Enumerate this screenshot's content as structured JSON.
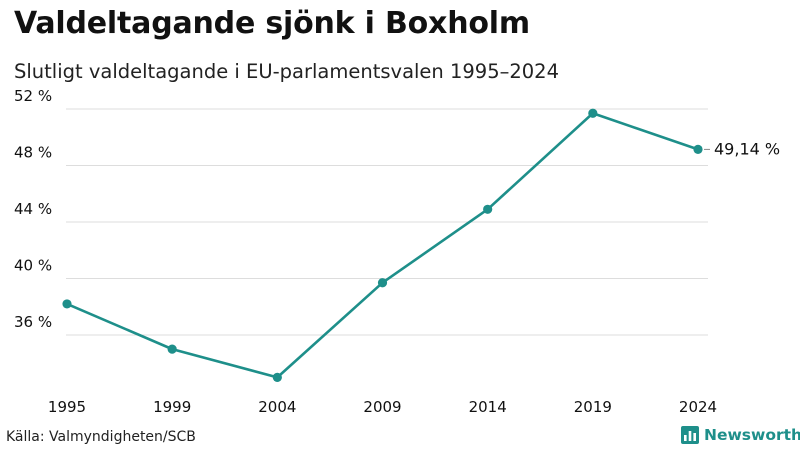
{
  "header": {
    "title": "Valdeltagande sjönk i Boxholm",
    "subtitle": "Slutligt valdeltagande i EU-parlamentsvalen 1995–2024"
  },
  "footer": {
    "source": "Källa: Valmyndigheten/SCB",
    "brand": "Newsworthy"
  },
  "colors": {
    "line": "#1e8f8a",
    "grid": "#dddddd",
    "text": "#111111",
    "brand": "#1e8f8a"
  },
  "chart_data": {
    "type": "line",
    "title": "Valdeltagande sjönk i Boxholm",
    "subtitle": "Slutligt valdeltagande i EU-parlamentsvalen 1995–2024",
    "xlabel": "",
    "ylabel": "",
    "ylim": [
      32,
      52.5
    ],
    "y_ticks": [
      36,
      40,
      44,
      48,
      52
    ],
    "y_tick_labels": [
      "36 %",
      "40 %",
      "44 %",
      "48 %",
      "52 %"
    ],
    "grid": true,
    "legend": "none",
    "categories": [
      "1995",
      "1999",
      "2004",
      "2009",
      "2014",
      "2019",
      "2024"
    ],
    "series": [
      {
        "name": "Valdeltagande",
        "values": [
          38.2,
          35.0,
          33.0,
          39.7,
          44.9,
          51.7,
          49.14
        ]
      }
    ],
    "end_label": "49,14 %"
  }
}
